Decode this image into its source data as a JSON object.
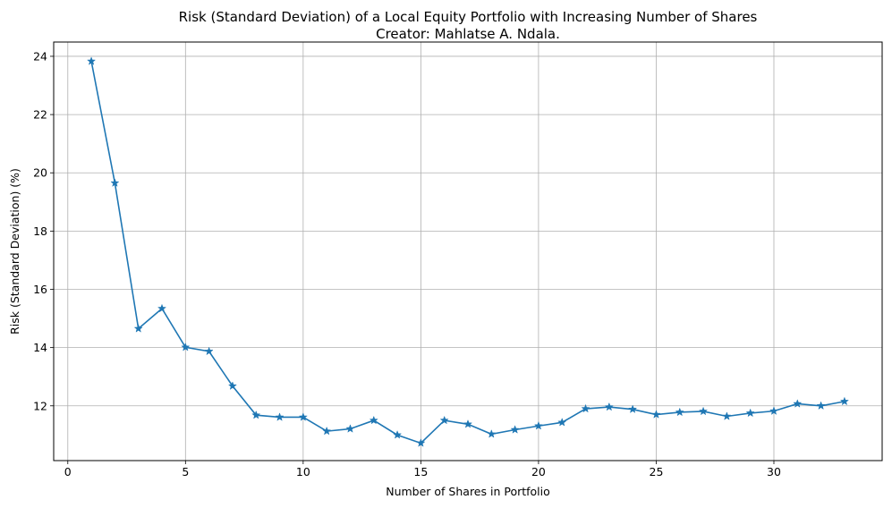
{
  "chart_data": {
    "type": "line",
    "title": "Risk (Standard Deviation) of a Local Equity Portfolio with Increasing Number of Shares",
    "subtitle": "Creator: Mahlatse A. Ndala.",
    "xlabel": "Number of Shares in Portfolio",
    "ylabel": "Risk (Standard Deviation) (%)",
    "xlim": [
      -0.6,
      34.6
    ],
    "ylim": [
      10.12,
      24.49
    ],
    "xticks": [
      0,
      5,
      10,
      15,
      20,
      25,
      30
    ],
    "yticks": [
      12,
      14,
      16,
      18,
      20,
      22,
      24
    ],
    "grid": true,
    "color": "#1f77b4",
    "marker": "star",
    "series": [
      {
        "x": [
          1,
          2,
          3,
          4,
          5,
          6,
          7,
          8,
          9,
          10,
          11,
          12,
          13,
          14,
          15,
          16,
          17,
          18,
          19,
          20,
          21,
          22,
          23,
          24,
          25,
          26,
          27,
          28,
          29,
          30,
          31,
          32,
          33
        ],
        "y": [
          23.83,
          19.65,
          14.65,
          15.34,
          14.01,
          13.87,
          12.68,
          11.68,
          11.61,
          11.61,
          11.13,
          11.21,
          11.5,
          11.0,
          10.72,
          11.5,
          11.37,
          11.03,
          11.18,
          11.31,
          11.43,
          11.9,
          11.96,
          11.88,
          11.7,
          11.78,
          11.81,
          11.64,
          11.75,
          11.82,
          12.07,
          12.0,
          12.15
        ]
      }
    ]
  }
}
